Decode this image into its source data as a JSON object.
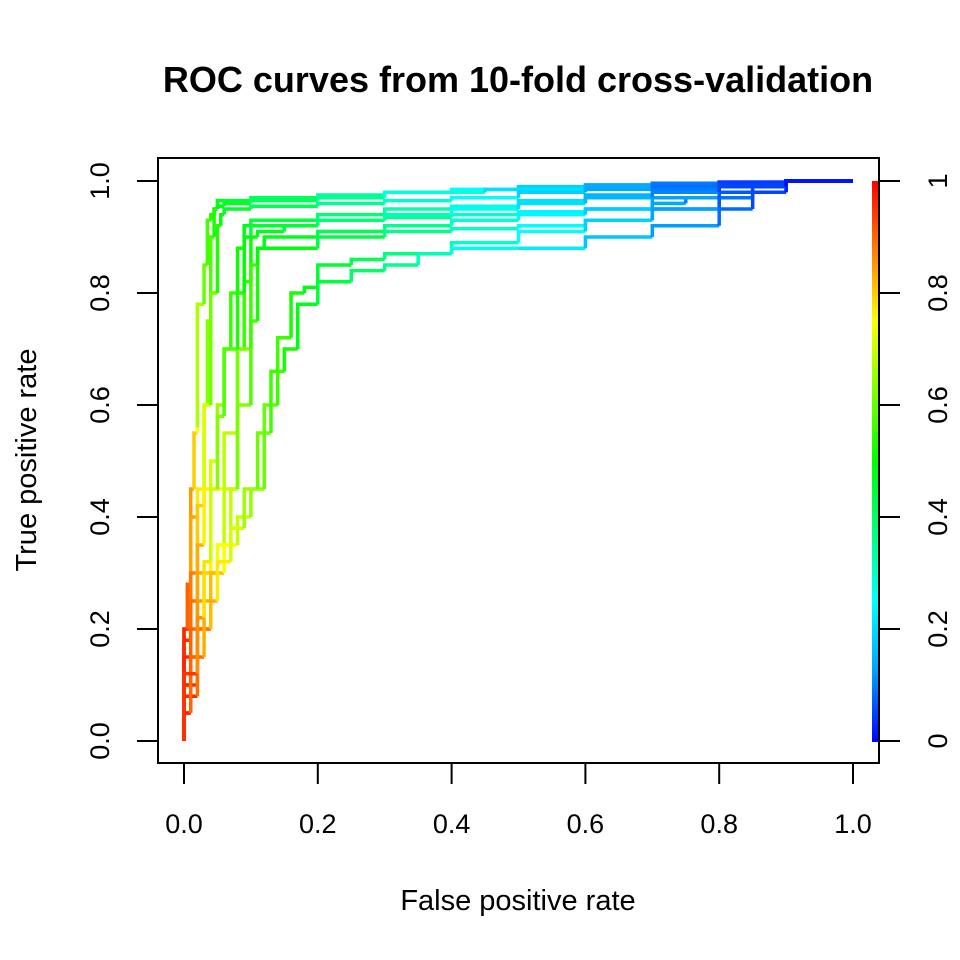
{
  "chart_data": {
    "type": "line",
    "title": "ROC curves from 10-fold cross-validation",
    "xlabel": "False positive rate",
    "ylabel": "True positive rate",
    "xlim": [
      0,
      1
    ],
    "ylim": [
      0,
      1
    ],
    "x_ticks": [
      "0.0",
      "0.2",
      "0.4",
      "0.6",
      "0.8",
      "1.0"
    ],
    "y_ticks": [
      "0.0",
      "0.2",
      "0.4",
      "0.6",
      "0.8",
      "1.0"
    ],
    "grid": false,
    "legend": "none",
    "colorbar": {
      "label_side": "right",
      "ticks": [
        "0",
        "0.2",
        "0.4",
        "0.6",
        "0.8",
        "1"
      ],
      "range": [
        0,
        1
      ],
      "colors": [
        "#0000ff",
        "#00a0ff",
        "#00ffff",
        "#00ff80",
        "#00ff00",
        "#80ff00",
        "#ffff00",
        "#ff8000",
        "#ff0000"
      ]
    },
    "series": [
      {
        "x": [
          0,
          0,
          0.01,
          0.01,
          0.015,
          0.02,
          0.02,
          0.03,
          0.035,
          0.04,
          0.045,
          0.05,
          0.05,
          0.06,
          0.1,
          0.2,
          0.3,
          0.4,
          0.5,
          0.6,
          0.7,
          0.8,
          0.9,
          1.0
        ],
        "y": [
          0,
          0.12,
          0.2,
          0.3,
          0.45,
          0.55,
          0.56,
          0.78,
          0.85,
          0.93,
          0.94,
          0.95,
          0.96,
          0.965,
          0.965,
          0.97,
          0.975,
          0.98,
          0.985,
          0.99,
          0.993,
          0.996,
          0.998,
          1.0
        ],
        "t": [
          1,
          0.97,
          0.92,
          0.88,
          0.82,
          0.78,
          0.72,
          0.62,
          0.58,
          0.55,
          0.52,
          0.5,
          0.48,
          0.47,
          0.44,
          0.38,
          0.33,
          0.28,
          0.22,
          0.16,
          0.11,
          0.06,
          0.03,
          0
        ]
      },
      {
        "x": [
          0,
          0.005,
          0.01,
          0.02,
          0.03,
          0.035,
          0.04,
          0.045,
          0.05,
          0.06,
          0.1,
          0.2,
          0.3,
          0.45,
          0.6,
          0.7,
          0.8,
          0.9,
          1.0
        ],
        "y": [
          0,
          0.2,
          0.28,
          0.4,
          0.45,
          0.6,
          0.75,
          0.9,
          0.95,
          0.955,
          0.96,
          0.965,
          0.97,
          0.98,
          0.985,
          0.99,
          0.995,
          0.998,
          1.0
        ],
        "t": [
          1,
          0.93,
          0.88,
          0.8,
          0.74,
          0.66,
          0.6,
          0.55,
          0.5,
          0.48,
          0.45,
          0.38,
          0.32,
          0.25,
          0.17,
          0.12,
          0.07,
          0.03,
          0
        ]
      },
      {
        "x": [
          0,
          0.01,
          0.02,
          0.03,
          0.04,
          0.05,
          0.055,
          0.06,
          0.1,
          0.2,
          0.3,
          0.4,
          0.5,
          0.6,
          0.7,
          0.8,
          0.9,
          1.0
        ],
        "y": [
          0,
          0.18,
          0.3,
          0.42,
          0.6,
          0.8,
          0.92,
          0.94,
          0.95,
          0.955,
          0.96,
          0.965,
          0.97,
          0.98,
          0.985,
          0.99,
          0.997,
          1.0
        ],
        "t": [
          1,
          0.92,
          0.84,
          0.76,
          0.66,
          0.56,
          0.5,
          0.48,
          0.45,
          0.39,
          0.33,
          0.28,
          0.22,
          0.16,
          0.11,
          0.06,
          0.03,
          0
        ]
      },
      {
        "x": [
          0,
          0.01,
          0.02,
          0.03,
          0.04,
          0.05,
          0.06,
          0.07,
          0.08,
          0.09,
          0.1,
          0.2,
          0.3,
          0.4,
          0.5,
          0.6,
          0.7,
          0.8,
          0.9,
          1.0
        ],
        "y": [
          0,
          0.15,
          0.25,
          0.35,
          0.45,
          0.5,
          0.6,
          0.7,
          0.8,
          0.88,
          0.92,
          0.93,
          0.94,
          0.95,
          0.955,
          0.965,
          0.975,
          0.985,
          0.995,
          1.0
        ],
        "t": [
          1,
          0.93,
          0.86,
          0.8,
          0.73,
          0.68,
          0.62,
          0.57,
          0.53,
          0.5,
          0.47,
          0.41,
          0.36,
          0.3,
          0.24,
          0.18,
          0.12,
          0.07,
          0.03,
          0
        ]
      },
      {
        "x": [
          0,
          0.01,
          0.02,
          0.04,
          0.06,
          0.08,
          0.09,
          0.1,
          0.11,
          0.15,
          0.2,
          0.3,
          0.4,
          0.5,
          0.6,
          0.7,
          0.75,
          0.8,
          0.9,
          1.0
        ],
        "y": [
          0,
          0.1,
          0.2,
          0.3,
          0.45,
          0.55,
          0.7,
          0.82,
          0.9,
          0.91,
          0.92,
          0.93,
          0.935,
          0.94,
          0.945,
          0.95,
          0.96,
          0.97,
          0.99,
          1.0
        ],
        "t": [
          1,
          0.94,
          0.87,
          0.8,
          0.72,
          0.65,
          0.58,
          0.53,
          0.49,
          0.46,
          0.43,
          0.38,
          0.33,
          0.27,
          0.21,
          0.16,
          0.12,
          0.08,
          0.03,
          0
        ]
      },
      {
        "x": [
          0,
          0.02,
          0.04,
          0.05,
          0.06,
          0.08,
          0.1,
          0.11,
          0.12,
          0.2,
          0.3,
          0.4,
          0.5,
          0.6,
          0.7,
          0.8,
          0.9,
          1.0
        ],
        "y": [
          0,
          0.1,
          0.2,
          0.3,
          0.35,
          0.45,
          0.6,
          0.75,
          0.88,
          0.9,
          0.91,
          0.92,
          0.93,
          0.94,
          0.95,
          0.97,
          0.99,
          1.0
        ],
        "t": [
          1,
          0.92,
          0.85,
          0.78,
          0.72,
          0.66,
          0.6,
          0.55,
          0.5,
          0.45,
          0.39,
          0.33,
          0.27,
          0.21,
          0.16,
          0.1,
          0.04,
          0
        ]
      },
      {
        "x": [
          0,
          0.01,
          0.02,
          0.03,
          0.05,
          0.07,
          0.08,
          0.1,
          0.11,
          0.2,
          0.3,
          0.4,
          0.5,
          0.6,
          0.7,
          0.8,
          0.85,
          0.9,
          1.0
        ],
        "y": [
          0,
          0.05,
          0.15,
          0.25,
          0.3,
          0.35,
          0.45,
          0.7,
          0.85,
          0.88,
          0.9,
          0.91,
          0.915,
          0.92,
          0.93,
          0.95,
          0.97,
          0.99,
          1.0
        ],
        "t": [
          1,
          0.95,
          0.88,
          0.82,
          0.77,
          0.72,
          0.66,
          0.58,
          0.53,
          0.47,
          0.4,
          0.34,
          0.28,
          0.22,
          0.17,
          0.11,
          0.07,
          0.04,
          0
        ]
      },
      {
        "x": [
          0,
          0.02,
          0.04,
          0.06,
          0.08,
          0.1,
          0.12,
          0.14,
          0.16,
          0.18,
          0.2,
          0.25,
          0.3,
          0.4,
          0.5,
          0.6,
          0.7,
          0.8,
          0.9,
          1.0
        ],
        "y": [
          0,
          0.08,
          0.2,
          0.3,
          0.35,
          0.4,
          0.45,
          0.6,
          0.72,
          0.8,
          0.81,
          0.85,
          0.86,
          0.87,
          0.89,
          0.91,
          0.93,
          0.95,
          0.98,
          1.0
        ],
        "t": [
          1,
          0.93,
          0.85,
          0.78,
          0.72,
          0.67,
          0.62,
          0.58,
          0.54,
          0.5,
          0.47,
          0.44,
          0.4,
          0.34,
          0.28,
          0.22,
          0.16,
          0.1,
          0.04,
          0
        ]
      },
      {
        "x": [
          0,
          0.01,
          0.03,
          0.05,
          0.07,
          0.09,
          0.11,
          0.13,
          0.15,
          0.17,
          0.2,
          0.25,
          0.3,
          0.35,
          0.4,
          0.5,
          0.6,
          0.7,
          0.8,
          0.85,
          0.9,
          1.0
        ],
        "y": [
          0,
          0.05,
          0.15,
          0.25,
          0.32,
          0.38,
          0.45,
          0.55,
          0.66,
          0.7,
          0.78,
          0.82,
          0.84,
          0.85,
          0.87,
          0.88,
          0.88,
          0.9,
          0.92,
          0.95,
          0.98,
          1.0
        ],
        "t": [
          1,
          0.94,
          0.86,
          0.8,
          0.74,
          0.68,
          0.63,
          0.58,
          0.54,
          0.5,
          0.46,
          0.42,
          0.38,
          0.34,
          0.3,
          0.25,
          0.2,
          0.15,
          0.1,
          0.07,
          0.04,
          0
        ]
      },
      {
        "x": [
          0,
          0.02,
          0.03,
          0.04,
          0.05,
          0.06,
          0.08,
          0.09,
          0.1,
          0.2,
          0.3,
          0.4,
          0.5,
          0.6,
          0.7,
          0.8,
          0.9,
          1.0
        ],
        "y": [
          0,
          0.12,
          0.22,
          0.32,
          0.45,
          0.58,
          0.7,
          0.8,
          0.9,
          0.92,
          0.93,
          0.94,
          0.95,
          0.96,
          0.97,
          0.98,
          0.99,
          1.0
        ],
        "t": [
          1,
          0.9,
          0.82,
          0.74,
          0.66,
          0.6,
          0.55,
          0.51,
          0.48,
          0.42,
          0.36,
          0.3,
          0.24,
          0.18,
          0.13,
          0.08,
          0.03,
          0
        ]
      }
    ]
  }
}
